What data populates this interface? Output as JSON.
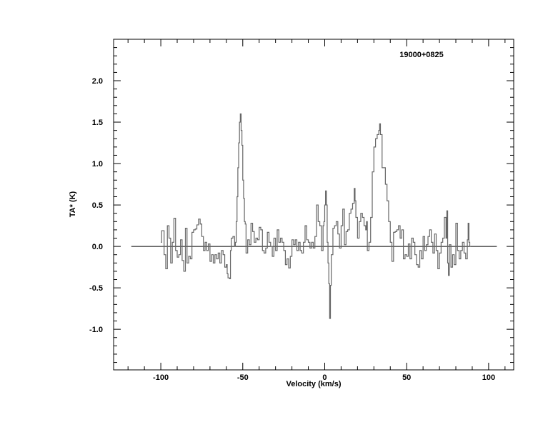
{
  "chart_data": {
    "type": "line",
    "style": "step",
    "title": "19000+0825",
    "xlabel": "Velocity (km/s)",
    "ylabel": "TA* (K)",
    "xlim": [
      -128.8,
      115.3
    ],
    "ylim": [
      -1.49,
      2.5
    ],
    "xticks": [
      -100,
      -50,
      0,
      50,
      100
    ],
    "xtick_labels": [
      "-100",
      "-50",
      "0",
      "50",
      "100"
    ],
    "yticks": [
      -1.0,
      -0.5,
      0.0,
      0.5,
      1.0,
      1.5,
      2.0
    ],
    "ytick_labels": [
      "-1.0",
      "-0.5",
      "0.0",
      "0.5",
      "1.0",
      "1.5",
      "2.0"
    ],
    "baseline": {
      "y": 0.0,
      "x_range": [
        -118,
        105
      ]
    },
    "grid": false,
    "line_color": "#666666",
    "series": [
      {
        "x": [
          -100,
          -99.5,
          -98,
          -97,
          -96,
          -95,
          -94,
          -93,
          -92,
          -91,
          -90,
          -89,
          -88,
          -87,
          -86,
          -85,
          -84,
          -83,
          -82,
          -81,
          -80,
          -79,
          -78,
          -77,
          -76,
          -75,
          -74,
          -73,
          -72,
          -71,
          -70,
          -69,
          -68,
          -67,
          -66,
          -65,
          -64,
          -63,
          -62,
          -61,
          -60,
          -59.5,
          -59,
          -58,
          -57.5,
          -57,
          -56,
          -55,
          -54.5,
          -54,
          -53.5,
          -53,
          -52.5,
          -52,
          -51.5,
          -51,
          -50.5,
          -50,
          -49.5,
          -49,
          -48.5,
          -48,
          -47,
          -46,
          -45,
          -44,
          -43,
          -42,
          -41,
          -40,
          -39,
          -38,
          -37,
          -36,
          -35,
          -34,
          -33,
          -32,
          -31,
          -30,
          -29,
          -28,
          -27,
          -26,
          -25,
          -24,
          -23,
          -22,
          -21,
          -20,
          -19,
          -18,
          -17,
          -16,
          -15,
          -14,
          -13,
          -12,
          -11,
          -10,
          -9,
          -8,
          -7,
          -6,
          -5,
          -4,
          -3,
          -2,
          -1,
          -0.5,
          0,
          0.5,
          1,
          1.5,
          2,
          2.5,
          3,
          3.5,
          4,
          5,
          6,
          7,
          8,
          9,
          10,
          11,
          12,
          13,
          14,
          15,
          16,
          17,
          18,
          18.5,
          19,
          20,
          21,
          22,
          23,
          24,
          25,
          25.5,
          26,
          27,
          28,
          29,
          30,
          31,
          32,
          33,
          33.5,
          34,
          35,
          36,
          37,
          38,
          39,
          40,
          41,
          42,
          43,
          44,
          45,
          46,
          47,
          48,
          49,
          50,
          51,
          52,
          53,
          54,
          55,
          56,
          57,
          58,
          59,
          60,
          61,
          62,
          63,
          64,
          65,
          66,
          67,
          68,
          69,
          70,
          71,
          72,
          73,
          74,
          74.5,
          75,
          75.5,
          76,
          77,
          78,
          79,
          80,
          81,
          82,
          83,
          84,
          85,
          86,
          87,
          87.5,
          88,
          88.5
        ],
        "y": [
          0.05,
          0.19,
          -0.1,
          -0.27,
          0.25,
          0.1,
          -0.2,
          0.05,
          0.34,
          -0.05,
          -0.13,
          -0.1,
          0.08,
          -0.17,
          -0.3,
          0.22,
          -0.2,
          -0.12,
          -0.15,
          0.17,
          0.2,
          0.21,
          0.26,
          0.33,
          0.27,
          0.12,
          -0.05,
          0.05,
          -0.05,
          0.03,
          -0.18,
          -0.1,
          -0.2,
          -0.1,
          -0.15,
          -0.08,
          -0.2,
          -0.05,
          -0.1,
          -0.25,
          -0.22,
          -0.33,
          -0.38,
          -0.39,
          -0.05,
          0.1,
          0.12,
          0.0,
          0.05,
          0.3,
          0.6,
          0.95,
          1.25,
          1.5,
          1.6,
          1.4,
          1.22,
          0.8,
          0.58,
          0.3,
          0.27,
          -0.08,
          0.08,
          0.02,
          0.28,
          0.18,
          0.05,
          0.1,
          0.08,
          0.23,
          0.2,
          -0.05,
          -0.08,
          -0.02,
          0.17,
          0.05,
          0.0,
          -0.12,
          0.1,
          -0.05,
          0.2,
          0.05,
          0.1,
          0.05,
          -0.05,
          -0.22,
          -0.15,
          -0.26,
          -0.12,
          0.08,
          0.02,
          0.08,
          -0.05,
          0.05,
          -0.05,
          -0.08,
          0.05,
          0.25,
          0.08,
          0.05,
          -0.02,
          0.05,
          -0.02,
          0.12,
          0.5,
          0.3,
          0.25,
          -0.05,
          0.25,
          0.3,
          0.5,
          0.67,
          0.5,
          0.05,
          -0.2,
          -0.45,
          -0.87,
          -0.47,
          -0.1,
          0.22,
          0.25,
          0.3,
          0.15,
          -0.02,
          0.25,
          0.45,
          0.02,
          0.18,
          0.2,
          0.4,
          0.45,
          0.52,
          0.7,
          0.55,
          0.35,
          0.1,
          0.3,
          0.4,
          0.35,
          0.25,
          0.2,
          0.3,
          -0.05,
          0.05,
          0.35,
          0.9,
          1.2,
          1.3,
          1.35,
          1.4,
          1.48,
          1.35,
          0.95,
          0.95,
          0.75,
          0.55,
          0.3,
          0.05,
          -0.18,
          0.17,
          0.18,
          0.2,
          0.25,
          0.1,
          0.2,
          -0.15,
          -0.1,
          -0.12,
          0.03,
          -0.15,
          0.1,
          0.05,
          -0.1,
          -0.22,
          -0.25,
          -0.05,
          -0.15,
          0.12,
          -0.05,
          0.02,
          0.12,
          0.2,
          0.05,
          -0.08,
          0.15,
          -0.05,
          -0.27,
          -0.08,
          0.05,
          0.1,
          0.35,
          0.1,
          0.43,
          -0.2,
          -0.35,
          0.02,
          -0.25,
          -0.1,
          -0.22,
          0.28,
          -0.05,
          -0.15,
          -0.05,
          0.05,
          -0.08,
          -0.15,
          0.08,
          0.28,
          0.05,
          0.0
        ]
      }
    ]
  }
}
